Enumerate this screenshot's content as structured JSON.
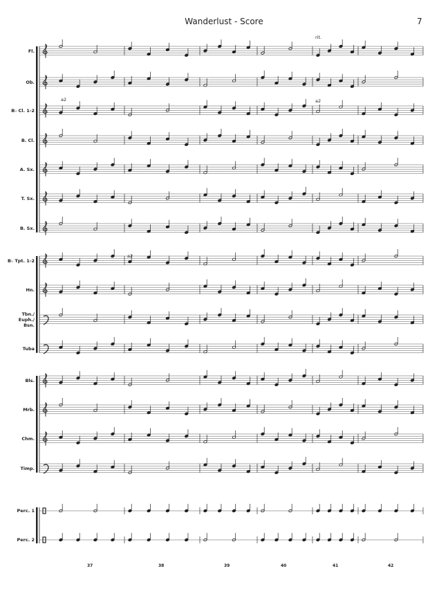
{
  "header": {
    "title": "Wanderlust - Score",
    "page": "7"
  },
  "staves": [
    {
      "name": "Fl."
    },
    {
      "name": "Ob."
    },
    {
      "name": "B♭ Cl. 1-2"
    },
    {
      "name": "B. Cl."
    },
    {
      "name": "A. Sx."
    },
    {
      "name": "T. Sx."
    },
    {
      "name": "B. Sx."
    },
    {
      "name": "B♭ Tpt. 1-2"
    },
    {
      "name": "Hn."
    },
    {
      "name": "Tbn./\nEuph./\nBsn."
    },
    {
      "name": "Tuba"
    },
    {
      "name": "Bls."
    },
    {
      "name": "Mrb."
    },
    {
      "name": "Chm."
    },
    {
      "name": "Timp."
    },
    {
      "name": "Perc. 1"
    },
    {
      "name": "Perc. 2"
    }
  ],
  "measure_numbers": [
    "37",
    "38",
    "39",
    "40",
    "41",
    "42"
  ],
  "annotations": [
    {
      "text": "rit."
    },
    {
      "text": "a2"
    },
    {
      "text": "a2"
    },
    {
      "text": "a2"
    }
  ]
}
